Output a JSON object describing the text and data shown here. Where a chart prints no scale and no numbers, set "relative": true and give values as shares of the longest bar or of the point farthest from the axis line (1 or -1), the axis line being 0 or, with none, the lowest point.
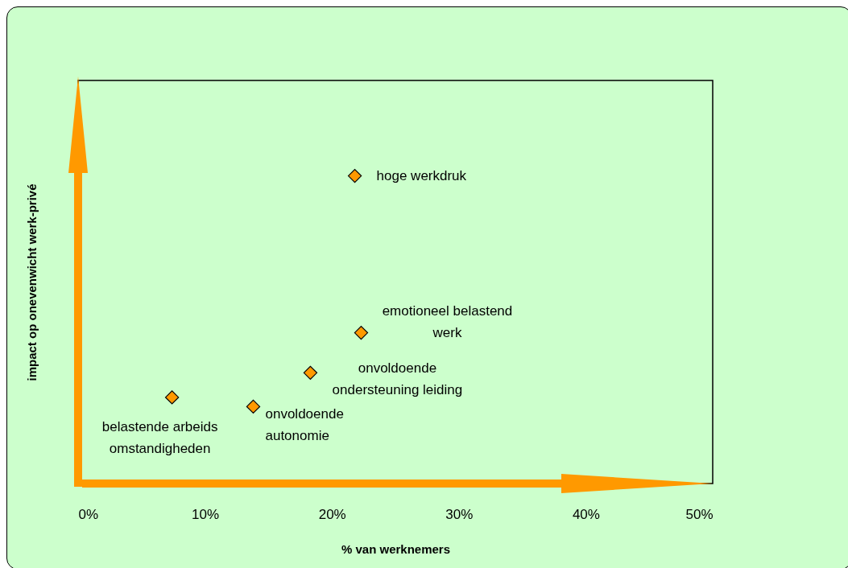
{
  "chart_data": {
    "type": "scatter",
    "xlabel": "% van werknemers",
    "ylabel": "impact op onevenwicht werk-privé",
    "relative": true,
    "marker": "diamond",
    "xlim": [
      0,
      50
    ],
    "xticks": [
      {
        "value": 0,
        "label": "0%"
      },
      {
        "value": 10,
        "label": "10%"
      },
      {
        "value": 20,
        "label": "20%"
      },
      {
        "value": 30,
        "label": "30%"
      },
      {
        "value": 40,
        "label": "40%"
      },
      {
        "value": 50,
        "label": "50%"
      }
    ],
    "series": [
      {
        "color": "#ff9900",
        "x": [
          21.8,
          22.3,
          18.3,
          13.8,
          7.4
        ],
        "values": [
          1,
          0.49,
          0.36,
          0.25,
          0.28
        ]
      }
    ],
    "annotations": [
      {
        "text": "hoge werkdruk",
        "x": 21.8,
        "y": 1
      },
      {
        "text": "emotioneel belastend werk",
        "x": 22.3,
        "y": 0.49
      },
      {
        "text": "onvoldoende ondersteuning leiding",
        "x": 18.3,
        "y": 0.36
      },
      {
        "text": "onvoldoende autonomie",
        "x": 13.8,
        "y": 0.25
      },
      {
        "text": "belastende arbeids omstandigheden",
        "x": 7.4,
        "y": 0.28
      }
    ]
  }
}
